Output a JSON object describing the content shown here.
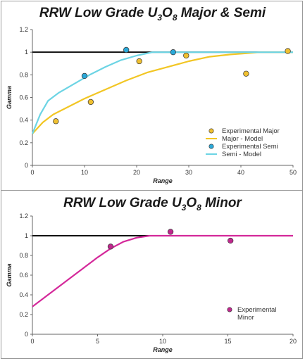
{
  "chart_data": [
    {
      "type": "scatter",
      "title_pre": "RRW Low Grade U",
      "title_sub1": "3",
      "title_mid": "O",
      "title_sub2": "8",
      "title_post": " Major & Semi",
      "xlabel": "Range",
      "ylabel": "Gamma",
      "xlim": [
        0,
        50
      ],
      "ylim": [
        0,
        1.2
      ],
      "xticks": [
        "0",
        "10",
        "20",
        "30",
        "40",
        "50"
      ],
      "yticks": [
        "0",
        "0.2",
        "0.4",
        "0.6",
        "0.8",
        "1",
        "1.2"
      ],
      "sill": 1,
      "grid": false,
      "legend_position": "bottom-right",
      "series": [
        {
          "name": "Experimental Major",
          "kind": "points",
          "color": "#f0c030",
          "x": [
            4.5,
            11.2,
            20.5,
            29.5,
            41,
            49
          ],
          "y": [
            0.39,
            0.56,
            0.92,
            0.97,
            0.81,
            1.01
          ]
        },
        {
          "name": "Major - Model",
          "kind": "line",
          "color": "#f2c624",
          "x": [
            0,
            2,
            4,
            7,
            10,
            14,
            18,
            22,
            26,
            30,
            34,
            38,
            41,
            43.5,
            50
          ],
          "y": [
            0.28,
            0.38,
            0.45,
            0.52,
            0.59,
            0.67,
            0.75,
            0.82,
            0.87,
            0.92,
            0.96,
            0.98,
            0.99,
            1.0,
            1.0
          ]
        },
        {
          "name": "Experimental Semi",
          "kind": "points",
          "color": "#2aa8d8",
          "x": [
            10,
            18,
            27
          ],
          "y": [
            0.79,
            1.02,
            1.0
          ]
        },
        {
          "name": "Semi - Model",
          "kind": "line",
          "color": "#6cd4e4",
          "x": [
            0,
            1.5,
            3,
            5,
            8,
            11,
            14,
            17,
            20,
            23,
            25,
            50
          ],
          "y": [
            0.28,
            0.45,
            0.57,
            0.64,
            0.72,
            0.8,
            0.87,
            0.93,
            0.97,
            1.0,
            1.0,
            1.0
          ]
        }
      ]
    },
    {
      "type": "scatter",
      "title_pre": "RRW Low Grade U",
      "title_sub1": "3",
      "title_mid": "O",
      "title_sub2": "8",
      "title_post": " Minor",
      "xlabel": "Range",
      "ylabel": "Gamma",
      "xlim": [
        0,
        20
      ],
      "ylim": [
        0,
        1.2
      ],
      "xticks": [
        "0",
        "5",
        "10",
        "15",
        "20"
      ],
      "yticks": [
        "0",
        "0.2",
        "0.4",
        "0.6",
        "0.8",
        "1",
        "1.2"
      ],
      "sill": 1,
      "grid": false,
      "legend_position": "bottom-right",
      "series": [
        {
          "name": "Experimental Minor",
          "kind": "points",
          "color": "#c0288e",
          "x": [
            6,
            10.6,
            15.2
          ],
          "y": [
            0.89,
            1.04,
            0.95
          ]
        },
        {
          "kind": "line",
          "color": "#d4289a",
          "x": [
            0,
            1,
            2,
            3,
            4,
            5,
            6,
            7,
            8,
            9,
            9.5,
            20
          ],
          "y": [
            0.28,
            0.38,
            0.48,
            0.58,
            0.68,
            0.78,
            0.87,
            0.94,
            0.98,
            1.0,
            1.0,
            1.0
          ]
        }
      ]
    }
  ],
  "legend_minor_lines": [
    "Experimental",
    "Minor"
  ]
}
